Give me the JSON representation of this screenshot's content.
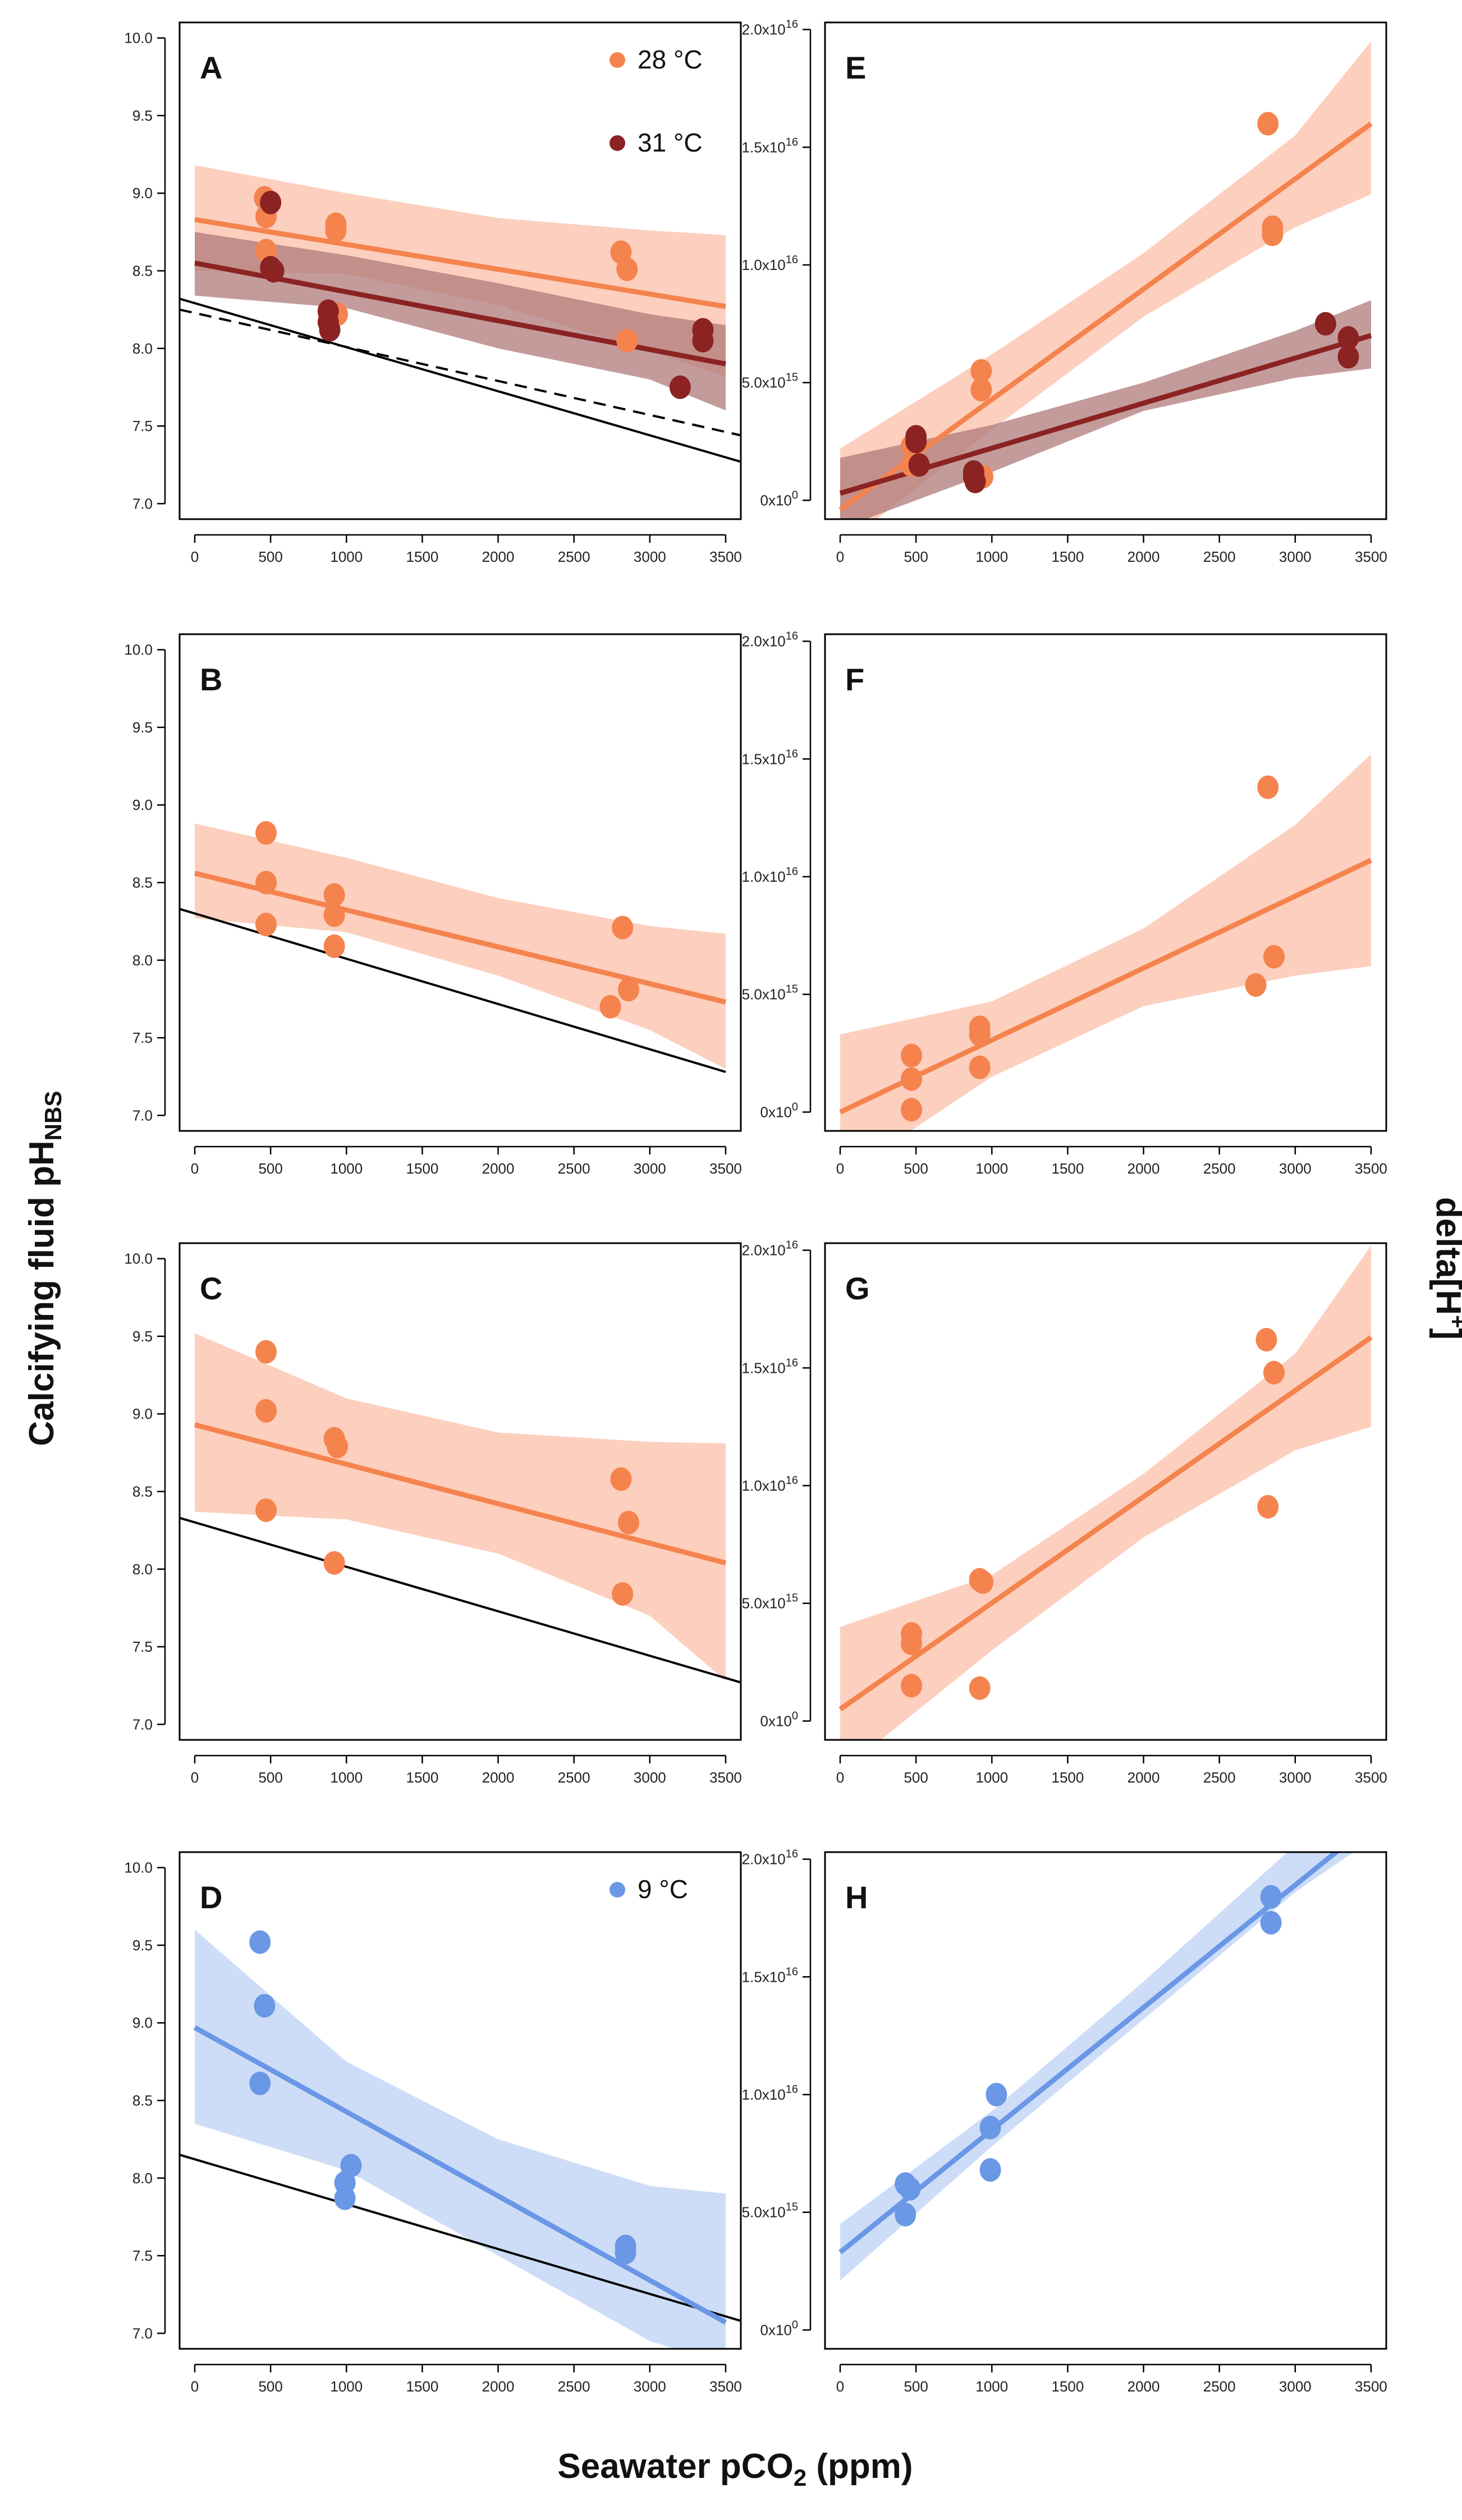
{
  "figure": {
    "y_label_left": "Calcifying fluid pH",
    "y_label_left_sub": "NBS",
    "y_label_right": "delta[H",
    "y_label_right_sup": "+",
    "y_label_right_end": "]",
    "x_label": "Seawater pCO",
    "x_label_sub": "2",
    "x_label_end": " (ppm)"
  },
  "colors": {
    "orange": "#F5834E",
    "orange_band": "#FCC7B3",
    "darkred": "#8B2323",
    "darkred_band": "#B07A7A",
    "blue": "#6A97E6",
    "blue_band": "#C6D7F6",
    "black": "#000000"
  },
  "chart_data": [
    {
      "panel": "A",
      "type": "scatter",
      "xlim": [
        -100,
        3600
      ],
      "ylim": [
        6.9,
        10.1
      ],
      "x_ticks": [
        "0",
        "500",
        "1000",
        "1500",
        "2000",
        "2500",
        "3000",
        "3500"
      ],
      "y_ticks": [
        "7.0",
        "7.5",
        "8.0",
        "8.5",
        "9.0",
        "9.5",
        "10.0"
      ],
      "legend": [
        {
          "label": "28 °C",
          "color": "orange"
        },
        {
          "label": "31 °C",
          "color": "darkred"
        }
      ],
      "series": [
        {
          "name": "28 °C",
          "color": "orange",
          "band_color": "orange_band",
          "points": [
            [
              460,
              8.97
            ],
            [
              470,
              8.85
            ],
            [
              470,
              8.63
            ],
            [
              930,
              8.8
            ],
            [
              930,
              8.76
            ],
            [
              940,
              8.22
            ],
            [
              2810,
              8.62
            ],
            [
              2850,
              8.51
            ],
            [
              2850,
              8.05
            ]
          ],
          "fit": [
            [
              0,
              8.83
            ],
            [
              3500,
              8.27
            ]
          ],
          "band": {
            "x": [
              0,
              1000,
              2000,
              3000,
              3500
            ],
            "lo": [
              8.5,
              8.48,
              8.28,
              7.98,
              7.82
            ],
            "hi": [
              9.18,
              9.0,
              8.84,
              8.76,
              8.73
            ]
          }
        },
        {
          "name": "31 °C",
          "color": "darkred",
          "band_color": "darkred_band",
          "points": [
            [
              500,
              8.94
            ],
            [
              500,
              8.52
            ],
            [
              520,
              8.5
            ],
            [
              880,
              8.24
            ],
            [
              880,
              8.17
            ],
            [
              890,
              8.12
            ],
            [
              3200,
              7.75
            ],
            [
              3350,
              8.12
            ],
            [
              3350,
              8.05
            ]
          ],
          "fit": [
            [
              0,
              8.55
            ],
            [
              3500,
              7.9
            ]
          ],
          "band": {
            "x": [
              0,
              1000,
              2000,
              3000,
              3500
            ],
            "lo": [
              8.34,
              8.26,
              8.0,
              7.8,
              7.6
            ],
            "hi": [
              8.75,
              8.6,
              8.42,
              8.22,
              8.15
            ]
          }
        }
      ],
      "reference_lines": [
        {
          "style": "solid",
          "points": [
            [
              -100,
              8.32
            ],
            [
              3600,
              7.27
            ]
          ]
        },
        {
          "style": "dashed",
          "points": [
            [
              -100,
              8.25
            ],
            [
              3600,
              7.44
            ]
          ]
        }
      ]
    },
    {
      "panel": "B",
      "type": "scatter",
      "xlim": [
        -100,
        3600
      ],
      "ylim": [
        6.9,
        10.1
      ],
      "x_ticks": [
        "0",
        "500",
        "1000",
        "1500",
        "2000",
        "2500",
        "3000",
        "3500"
      ],
      "y_ticks": [
        "7.0",
        "7.5",
        "8.0",
        "8.5",
        "9.0",
        "9.5",
        "10.0"
      ],
      "series": [
        {
          "name": "28 °C",
          "color": "orange",
          "band_color": "orange_band",
          "points": [
            [
              470,
              8.82
            ],
            [
              470,
              8.5
            ],
            [
              470,
              8.23
            ],
            [
              920,
              8.42
            ],
            [
              920,
              8.29
            ],
            [
              920,
              8.09
            ],
            [
              2740,
              7.7
            ],
            [
              2820,
              8.21
            ],
            [
              2860,
              7.81
            ]
          ],
          "fit": [
            [
              0,
              8.56
            ],
            [
              3500,
              7.73
            ]
          ],
          "band": {
            "x": [
              0,
              1000,
              2000,
              3000,
              3500
            ],
            "lo": [
              8.27,
              8.18,
              7.9,
              7.55,
              7.3
            ],
            "hi": [
              8.88,
              8.66,
              8.4,
              8.22,
              8.17
            ]
          }
        }
      ],
      "reference_lines": [
        {
          "style": "solid",
          "points": [
            [
              -100,
              8.33
            ],
            [
              3500,
              7.28
            ]
          ]
        }
      ]
    },
    {
      "panel": "C",
      "type": "scatter",
      "xlim": [
        -100,
        3600
      ],
      "ylim": [
        6.9,
        10.1
      ],
      "x_ticks": [
        "0",
        "500",
        "1000",
        "1500",
        "2000",
        "2500",
        "3000",
        "3500"
      ],
      "y_ticks": [
        "7.0",
        "7.5",
        "8.0",
        "8.5",
        "9.0",
        "9.5",
        "10.0"
      ],
      "series": [
        {
          "name": "28 °C",
          "color": "orange",
          "band_color": "orange_band",
          "points": [
            [
              470,
              9.4
            ],
            [
              470,
              9.02
            ],
            [
              470,
              8.38
            ],
            [
              920,
              8.84
            ],
            [
              940,
              8.79
            ],
            [
              920,
              8.04
            ],
            [
              2810,
              8.58
            ],
            [
              2860,
              8.3
            ],
            [
              2820,
              7.84
            ]
          ],
          "fit": [
            [
              0,
              8.93
            ],
            [
              3500,
              8.04
            ]
          ],
          "band": {
            "x": [
              0,
              1000,
              2000,
              3000,
              3500
            ],
            "lo": [
              8.37,
              8.32,
              8.1,
              7.7,
              7.28
            ],
            "hi": [
              9.52,
              9.1,
              8.88,
              8.82,
              8.81
            ]
          }
        }
      ],
      "reference_lines": [
        {
          "style": "solid",
          "points": [
            [
              -100,
              8.33
            ],
            [
              3600,
              7.27
            ]
          ]
        }
      ]
    },
    {
      "panel": "D",
      "type": "scatter",
      "xlim": [
        -100,
        3600
      ],
      "ylim": [
        6.9,
        10.1
      ],
      "x_ticks": [
        "0",
        "500",
        "1000",
        "1500",
        "2000",
        "2500",
        "3000",
        "3500"
      ],
      "y_ticks": [
        "7.0",
        "7.5",
        "8.0",
        "8.5",
        "9.0",
        "9.5",
        "10.0"
      ],
      "legend": [
        {
          "label": "9 °C",
          "color": "blue"
        }
      ],
      "series": [
        {
          "name": "9 °C",
          "color": "blue",
          "band_color": "blue_band",
          "points": [
            [
              430,
              9.52
            ],
            [
              460,
              9.11
            ],
            [
              430,
              8.61
            ],
            [
              1030,
              8.08
            ],
            [
              990,
              7.97
            ],
            [
              990,
              7.87
            ],
            [
              2840,
              7.56
            ],
            [
              2840,
              7.52
            ]
          ],
          "fit": [
            [
              0,
              8.97
            ],
            [
              3500,
              7.07
            ]
          ],
          "band": {
            "x": [
              0,
              1000,
              2000,
              3000,
              3500
            ],
            "lo": [
              8.35,
              8.05,
              7.5,
              6.95,
              6.8
            ],
            "hi": [
              9.6,
              8.75,
              8.25,
              7.95,
              7.9
            ]
          }
        }
      ],
      "reference_lines": [
        {
          "style": "solid",
          "points": [
            [
              -100,
              8.15
            ],
            [
              3600,
              7.08
            ]
          ]
        }
      ]
    },
    {
      "panel": "E",
      "type": "scatter",
      "xlim": [
        -100,
        3600
      ],
      "ylim": [
        -0.08,
        2.03
      ],
      "x_ticks": [
        "0",
        "500",
        "1000",
        "1500",
        "2000",
        "2500",
        "3000",
        "3500"
      ],
      "y_ticks": [
        "0x10",
        "5.0x10",
        "1.0x10",
        "1.5x10",
        "2.0x10"
      ],
      "y_ticks_exp": [
        "0",
        "15",
        "16",
        "16",
        "16"
      ],
      "y_unit": "x10^16",
      "series": [
        {
          "name": "28 °C",
          "color": "orange",
          "band_color": "orange_band",
          "points": [
            [
              470,
              0.23
            ],
            [
              470,
              0.15
            ],
            [
              930,
              0.55
            ],
            [
              930,
              0.47
            ],
            [
              940,
              0.1
            ],
            [
              2820,
              1.6
            ],
            [
              2850,
              1.16
            ],
            [
              2850,
              1.13
            ]
          ],
          "fit": [
            [
              0,
              -0.04
            ],
            [
              3500,
              1.6
            ]
          ],
          "band": {
            "x": [
              0,
              1000,
              2000,
              3000,
              3500
            ],
            "lo": [
              -0.2,
              0.3,
              0.78,
              1.16,
              1.3
            ],
            "hi": [
              0.22,
              0.62,
              1.05,
              1.55,
              1.95
            ]
          }
        },
        {
          "name": "31 °C",
          "color": "darkred",
          "band_color": "darkred_band",
          "points": [
            [
              500,
              0.27
            ],
            [
              500,
              0.25
            ],
            [
              520,
              0.15
            ],
            [
              880,
              0.12
            ],
            [
              880,
              0.1
            ],
            [
              890,
              0.08
            ],
            [
              3200,
              0.75
            ],
            [
              3350,
              0.69
            ],
            [
              3350,
              0.61
            ]
          ],
          "fit": [
            [
              0,
              0.03
            ],
            [
              3500,
              0.7
            ]
          ],
          "band": {
            "x": [
              0,
              1000,
              2000,
              3000,
              3500
            ],
            "lo": [
              -0.12,
              0.12,
              0.38,
              0.52,
              0.56
            ],
            "hi": [
              0.18,
              0.32,
              0.5,
              0.72,
              0.85
            ]
          }
        }
      ]
    },
    {
      "panel": "F",
      "type": "scatter",
      "xlim": [
        -100,
        3600
      ],
      "ylim": [
        -0.08,
        2.03
      ],
      "x_ticks": [
        "0",
        "500",
        "1000",
        "1500",
        "2000",
        "2500",
        "3000",
        "3500"
      ],
      "y_ticks": [
        "0x10",
        "5.0x10",
        "1.0x10",
        "1.5x10",
        "2.0x10"
      ],
      "y_ticks_exp": [
        "0",
        "15",
        "16",
        "16",
        "16"
      ],
      "y_unit": "x10^16",
      "series": [
        {
          "name": "28 °C",
          "color": "orange",
          "band_color": "orange_band",
          "points": [
            [
              470,
              0.24
            ],
            [
              470,
              0.14
            ],
            [
              470,
              0.01
            ],
            [
              920,
              0.36
            ],
            [
              920,
              0.33
            ],
            [
              920,
              0.19
            ],
            [
              2740,
              0.54
            ],
            [
              2820,
              1.38
            ],
            [
              2860,
              0.66
            ]
          ],
          "fit": [
            [
              0,
              0.0
            ],
            [
              3500,
              1.07
            ]
          ],
          "band": {
            "x": [
              0,
              1000,
              2000,
              3000,
              3500
            ],
            "lo": [
              -0.28,
              0.15,
              0.45,
              0.58,
              0.62
            ],
            "hi": [
              0.33,
              0.47,
              0.78,
              1.22,
              1.52
            ]
          }
        }
      ]
    },
    {
      "panel": "G",
      "type": "scatter",
      "xlim": [
        -100,
        3600
      ],
      "ylim": [
        -0.08,
        2.03
      ],
      "x_ticks": [
        "0",
        "500",
        "1000",
        "1500",
        "2000",
        "2500",
        "3000",
        "3500"
      ],
      "y_ticks": [
        "0x10",
        "5.0x10",
        "1.0x10",
        "1.5x10",
        "2.0x10"
      ],
      "y_ticks_exp": [
        "0",
        "15",
        "16",
        "16",
        "16"
      ],
      "y_unit": "x10^16",
      "series": [
        {
          "name": "28 °C",
          "color": "orange",
          "band_color": "orange_band",
          "points": [
            [
              470,
              0.37
            ],
            [
              470,
              0.33
            ],
            [
              470,
              0.15
            ],
            [
              920,
              0.6
            ],
            [
              940,
              0.59
            ],
            [
              920,
              0.14
            ],
            [
              2810,
              1.62
            ],
            [
              2860,
              1.48
            ],
            [
              2820,
              0.91
            ]
          ],
          "fit": [
            [
              0,
              0.05
            ],
            [
              3500,
              1.63
            ]
          ],
          "band": {
            "x": [
              0,
              1000,
              2000,
              3000,
              3500
            ],
            "lo": [
              -0.22,
              0.3,
              0.78,
              1.15,
              1.25
            ],
            "hi": [
              0.4,
              0.62,
              1.05,
              1.56,
              2.02
            ]
          }
        }
      ]
    },
    {
      "panel": "H",
      "type": "scatter",
      "xlim": [
        -100,
        3600
      ],
      "ylim": [
        -0.08,
        2.03
      ],
      "x_ticks": [
        "0",
        "500",
        "1000",
        "1500",
        "2000",
        "2500",
        "3000",
        "3500"
      ],
      "y_ticks": [
        "0x10",
        "5.0x10",
        "1.0x10",
        "1.5x10",
        "2.0x10"
      ],
      "y_ticks_exp": [
        "0",
        "15",
        "16",
        "16",
        "16"
      ],
      "y_unit": "x10^16",
      "series": [
        {
          "name": "9 °C",
          "color": "blue",
          "band_color": "blue_band",
          "points": [
            [
              430,
              0.62
            ],
            [
              460,
              0.6
            ],
            [
              430,
              0.49
            ],
            [
              1030,
              1.0
            ],
            [
              990,
              0.86
            ],
            [
              990,
              0.68
            ],
            [
              2840,
              1.84
            ],
            [
              2840,
              1.73
            ]
          ],
          "fit": [
            [
              0,
              0.33
            ],
            [
              3500,
              2.15
            ]
          ],
          "band": {
            "x": [
              0,
              1000,
              2000,
              3000,
              3500
            ],
            "lo": [
              0.21,
              0.78,
              1.32,
              1.86,
              2.08
            ],
            "hi": [
              0.45,
              0.93,
              1.48,
              2.06,
              2.3
            ]
          }
        }
      ]
    }
  ]
}
